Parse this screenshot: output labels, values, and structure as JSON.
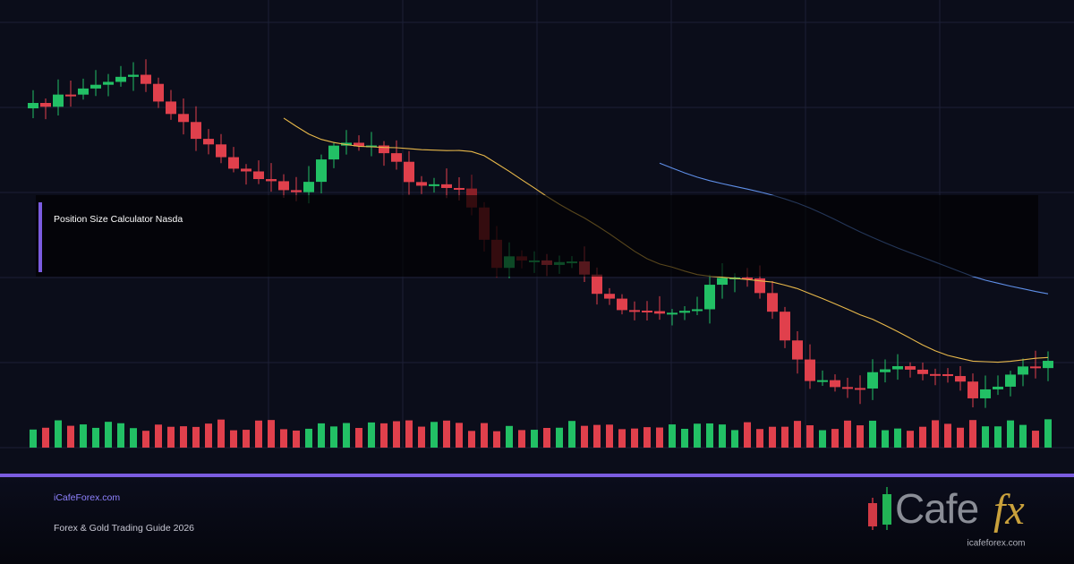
{
  "card": {
    "overlay_title": "Position Size Calculator Nasda",
    "site": "iCafeForex.com",
    "subtitle": "Forex & Gold Trading Guide 2026",
    "logo": {
      "word": "Cafe",
      "mark": "fx",
      "url": "icafeforex.com"
    }
  }
}
